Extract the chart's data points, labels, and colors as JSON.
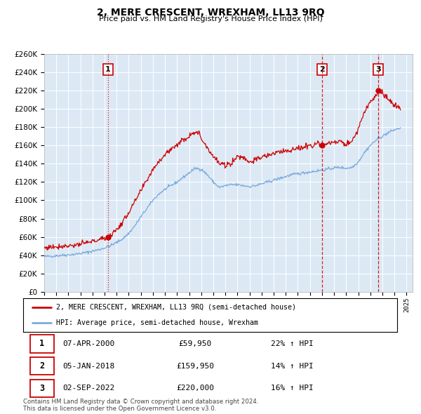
{
  "title": "2, MERE CRESCENT, WREXHAM, LL13 9RQ",
  "subtitle": "Price paid vs. HM Land Registry's House Price Index (HPI)",
  "ylim": [
    0,
    260000
  ],
  "yticks": [
    0,
    20000,
    40000,
    60000,
    80000,
    100000,
    120000,
    140000,
    160000,
    180000,
    200000,
    220000,
    240000,
    260000
  ],
  "sale_color": "#cc0000",
  "hpi_color": "#7aaadd",
  "bg_color": "#dce9f5",
  "sale_label": "2, MERE CRESCENT, WREXHAM, LL13 9RQ (semi-detached house)",
  "hpi_label": "HPI: Average price, semi-detached house, Wrexham",
  "transactions": [
    {
      "num": 1,
      "date": "07-APR-2000",
      "price": 59950,
      "pct": "22%",
      "dir": "↑",
      "x_year": 2000.27,
      "vline_style": "dotted"
    },
    {
      "num": 2,
      "date": "05-JAN-2018",
      "price": 159950,
      "pct": "14%",
      "dir": "↑",
      "x_year": 2018.03,
      "vline_style": "dashed"
    },
    {
      "num": 3,
      "date": "02-SEP-2022",
      "price": 220000,
      "pct": "16%",
      "dir": "↑",
      "x_year": 2022.67,
      "vline_style": "dashed"
    }
  ],
  "footnote": "Contains HM Land Registry data © Crown copyright and database right 2024.\nThis data is licensed under the Open Government Licence v3.0.",
  "xlim_start": 1995.0,
  "xlim_end": 2025.5,
  "hpi_key": [
    [
      1995.0,
      38500
    ],
    [
      1995.5,
      39000
    ],
    [
      1996.0,
      39500
    ],
    [
      1996.5,
      40000
    ],
    [
      1997.0,
      40500
    ],
    [
      1997.5,
      41000
    ],
    [
      1998.0,
      42000
    ],
    [
      1998.5,
      43000
    ],
    [
      1999.0,
      44500
    ],
    [
      1999.5,
      46000
    ],
    [
      2000.0,
      48000
    ],
    [
      2000.5,
      50500
    ],
    [
      2001.0,
      54000
    ],
    [
      2001.5,
      58000
    ],
    [
      2002.0,
      64000
    ],
    [
      2002.5,
      72000
    ],
    [
      2003.0,
      82000
    ],
    [
      2003.5,
      91000
    ],
    [
      2004.0,
      100000
    ],
    [
      2004.5,
      107000
    ],
    [
      2005.0,
      112000
    ],
    [
      2005.5,
      116000
    ],
    [
      2006.0,
      120000
    ],
    [
      2006.5,
      125000
    ],
    [
      2007.0,
      130000
    ],
    [
      2007.5,
      135000
    ],
    [
      2008.0,
      134000
    ],
    [
      2008.5,
      128000
    ],
    [
      2009.0,
      120000
    ],
    [
      2009.5,
      114000
    ],
    [
      2010.0,
      116000
    ],
    [
      2010.5,
      117000
    ],
    [
      2011.0,
      117000
    ],
    [
      2011.5,
      116000
    ],
    [
      2012.0,
      115000
    ],
    [
      2012.5,
      116000
    ],
    [
      2013.0,
      118000
    ],
    [
      2013.5,
      120000
    ],
    [
      2014.0,
      122000
    ],
    [
      2014.5,
      124000
    ],
    [
      2015.0,
      126000
    ],
    [
      2015.5,
      128000
    ],
    [
      2016.0,
      129000
    ],
    [
      2016.5,
      130000
    ],
    [
      2017.0,
      131000
    ],
    [
      2017.5,
      132000
    ],
    [
      2018.0,
      133000
    ],
    [
      2018.5,
      134000
    ],
    [
      2019.0,
      135500
    ],
    [
      2019.5,
      136000
    ],
    [
      2020.0,
      135000
    ],
    [
      2020.5,
      136000
    ],
    [
      2021.0,
      142000
    ],
    [
      2021.5,
      152000
    ],
    [
      2022.0,
      160000
    ],
    [
      2022.5,
      166000
    ],
    [
      2023.0,
      170000
    ],
    [
      2023.5,
      174000
    ],
    [
      2024.0,
      177000
    ],
    [
      2024.5,
      179000
    ]
  ],
  "sale_key": [
    [
      1995.0,
      48000
    ],
    [
      1995.5,
      49000
    ],
    [
      1996.0,
      49500
    ],
    [
      1996.5,
      50000
    ],
    [
      1997.0,
      50500
    ],
    [
      1997.5,
      51000
    ],
    [
      1998.0,
      52000
    ],
    [
      1998.5,
      53500
    ],
    [
      1999.0,
      55000
    ],
    [
      1999.5,
      57000
    ],
    [
      2000.0,
      58500
    ],
    [
      2000.27,
      59950
    ],
    [
      2000.5,
      62000
    ],
    [
      2001.0,
      68000
    ],
    [
      2001.5,
      76000
    ],
    [
      2002.0,
      87000
    ],
    [
      2002.5,
      98000
    ],
    [
      2003.0,
      110000
    ],
    [
      2003.5,
      122000
    ],
    [
      2004.0,
      134000
    ],
    [
      2004.5,
      143000
    ],
    [
      2005.0,
      150000
    ],
    [
      2005.5,
      156000
    ],
    [
      2006.0,
      161000
    ],
    [
      2006.5,
      166000
    ],
    [
      2007.0,
      170000
    ],
    [
      2007.3,
      175000
    ],
    [
      2007.8,
      173000
    ],
    [
      2008.0,
      168000
    ],
    [
      2008.5,
      158000
    ],
    [
      2009.0,
      148000
    ],
    [
      2009.5,
      140000
    ],
    [
      2010.0,
      138000
    ],
    [
      2010.5,
      141000
    ],
    [
      2011.0,
      148000
    ],
    [
      2011.5,
      147000
    ],
    [
      2012.0,
      142000
    ],
    [
      2012.5,
      144000
    ],
    [
      2013.0,
      147000
    ],
    [
      2013.5,
      149000
    ],
    [
      2014.0,
      151000
    ],
    [
      2014.5,
      153000
    ],
    [
      2015.0,
      154000
    ],
    [
      2015.5,
      155000
    ],
    [
      2016.0,
      156000
    ],
    [
      2016.5,
      158000
    ],
    [
      2017.0,
      160000
    ],
    [
      2017.5,
      162000
    ],
    [
      2018.0,
      161000
    ],
    [
      2018.03,
      159950
    ],
    [
      2018.5,
      162000
    ],
    [
      2019.0,
      163000
    ],
    [
      2019.5,
      164000
    ],
    [
      2020.0,
      161000
    ],
    [
      2020.5,
      165000
    ],
    [
      2021.0,
      178000
    ],
    [
      2021.5,
      196000
    ],
    [
      2022.0,
      208000
    ],
    [
      2022.5,
      215000
    ],
    [
      2022.67,
      220000
    ],
    [
      2023.0,
      216000
    ],
    [
      2023.5,
      211000
    ],
    [
      2024.0,
      203000
    ],
    [
      2024.5,
      200000
    ]
  ]
}
